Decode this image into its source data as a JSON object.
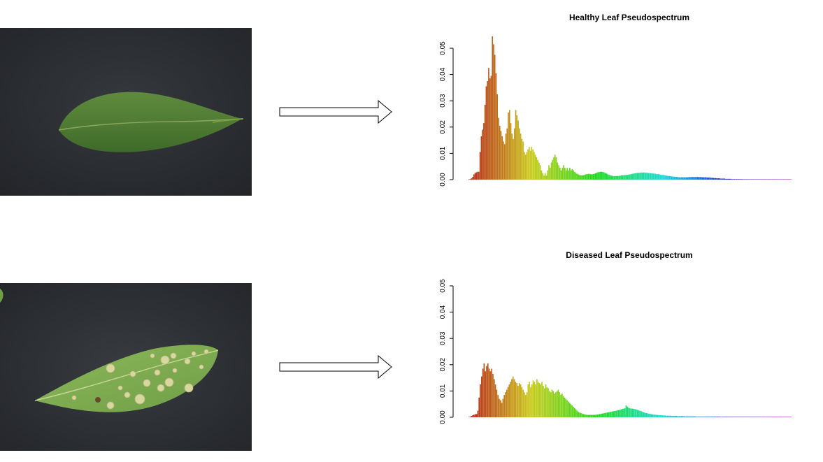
{
  "panels": [
    {
      "leaf_state": "healthy",
      "arrow_icon": "right-arrow-icon"
    },
    {
      "leaf_state": "diseased",
      "arrow_icon": "right-arrow-icon"
    }
  ],
  "chart_data": [
    {
      "type": "bar",
      "title": "Healthy Leaf Pseudospectrum",
      "xlabel": "",
      "ylabel": "",
      "ylim": [
        0,
        0.05
      ],
      "yticks": [
        "0.00",
        "0.01",
        "0.02",
        "0.03",
        "0.04",
        "0.05"
      ],
      "n_bins": 256,
      "color_scale": "rainbow red to magenta",
      "values": [
        0.0001,
        0.0002,
        0.0005,
        0.001,
        0.002,
        0.0025,
        0.0028,
        0.003,
        0.003,
        0.0105,
        0.0165,
        0.019,
        0.0215,
        0.0285,
        0.0355,
        0.0375,
        0.0425,
        0.0385,
        0.0395,
        0.0545,
        0.0515,
        0.0475,
        0.0405,
        0.0325,
        0.0235,
        0.0205,
        0.0185,
        0.0165,
        0.0145,
        0.0135,
        0.0175,
        0.0195,
        0.0255,
        0.0265,
        0.0215,
        0.0175,
        0.0155,
        0.0195,
        0.0265,
        0.0245,
        0.0225,
        0.0195,
        0.0175,
        0.0155,
        0.0145,
        0.0105,
        0.0095,
        0.0105,
        0.0115,
        0.0125,
        0.011,
        0.0125,
        0.0115,
        0.0105,
        0.0095,
        0.0085,
        0.0075,
        0.0065,
        0.0055,
        0.0035,
        0.0025,
        0.0015,
        0.0025,
        0.0015,
        0.0035,
        0.0055,
        0.0045,
        0.0065,
        0.0075,
        0.0085,
        0.0095,
        0.0085,
        0.0065,
        0.0055,
        0.0045,
        0.0035,
        0.0045,
        0.0055,
        0.0045,
        0.0035,
        0.0045,
        0.0035,
        0.0045,
        0.0035,
        0.004,
        0.0035,
        0.003,
        0.0025,
        0.0022,
        0.002,
        0.0018,
        0.0016,
        0.0016,
        0.0017,
        0.0018,
        0.002,
        0.0021,
        0.0022,
        0.0022,
        0.0021,
        0.002,
        0.0021,
        0.0022,
        0.0024,
        0.0026,
        0.0028,
        0.0029,
        0.003,
        0.003,
        0.0029,
        0.0027,
        0.0025,
        0.0023,
        0.002,
        0.0018,
        0.0016,
        0.0015,
        0.0014,
        0.0013,
        0.0013,
        0.0013,
        0.0014,
        0.0014,
        0.0015,
        0.0016,
        0.0016,
        0.0017,
        0.0017,
        0.0018,
        0.0018,
        0.0019,
        0.002,
        0.0021,
        0.0022,
        0.0023,
        0.0024,
        0.0025,
        0.0025,
        0.0026,
        0.0026,
        0.0027,
        0.0027,
        0.0027,
        0.0027,
        0.0026,
        0.0026,
        0.0025,
        0.0025,
        0.0024,
        0.0024,
        0.0023,
        0.0023,
        0.0022,
        0.0021,
        0.0021,
        0.002,
        0.0019,
        0.0018,
        0.0018,
        0.0017,
        0.0016,
        0.0015,
        0.0014,
        0.0014,
        0.0013,
        0.0012,
        0.0012,
        0.0011,
        0.0011,
        0.001,
        0.001,
        0.0009,
        0.0009,
        0.0009,
        0.0009,
        0.0009,
        0.0009,
        0.0009,
        0.0009,
        0.001,
        0.001,
        0.001,
        0.001,
        0.001,
        0.001,
        0.001,
        0.001,
        0.001,
        0.001,
        0.001,
        0.0009,
        0.0009,
        0.0009,
        0.0009,
        0.0008,
        0.0008,
        0.0008,
        0.0007,
        0.0007,
        0.0006,
        0.0006,
        0.0006,
        0.0005,
        0.0005,
        0.0005,
        0.0004,
        0.0004,
        0.0004,
        0.0004,
        0.0003,
        0.0003,
        0.0003,
        0.0003,
        0.0003,
        0.0002,
        0.0002,
        0.0002,
        0.0002,
        0.0002,
        0.0002,
        0.0002,
        0.0002,
        0.0002,
        0.0001,
        0.0001,
        0.0001,
        0.0001,
        0.0001,
        0.0001,
        0.0001,
        0.0001,
        0.0001,
        0.0001,
        0.0001,
        0.0001,
        0.0001,
        0.0001,
        0.0001,
        0.0001,
        0.0001,
        0.0001,
        0.0001,
        0.0001,
        0.0001,
        0.0001,
        0.0001,
        0.0001,
        0.0001,
        0.0001,
        0.0001,
        0.0001,
        0.0001,
        0.0001,
        0.0001,
        0.0001,
        0.0001,
        0.0001,
        0.0001,
        0.0001,
        0.0001,
        0.0001,
        0.0001,
        0.0001
      ]
    },
    {
      "type": "bar",
      "title": "Diseased Leaf Pseudospectrum",
      "xlabel": "",
      "ylabel": "",
      "ylim": [
        0,
        0.05
      ],
      "yticks": [
        "0.00",
        "0.01",
        "0.02",
        "0.03",
        "0.04",
        "0.05"
      ],
      "n_bins": 256,
      "color_scale": "rainbow red to magenta",
      "values": [
        0.0001,
        0.0002,
        0.0005,
        0.0008,
        0.001,
        0.0012,
        0.0012,
        0.0025,
        0.0075,
        0.0125,
        0.0155,
        0.0185,
        0.0205,
        0.0175,
        0.0195,
        0.0205,
        0.0185,
        0.0175,
        0.0185,
        0.0165,
        0.0145,
        0.0125,
        0.0105,
        0.0085,
        0.007,
        0.0065,
        0.0055,
        0.007,
        0.0085,
        0.0095,
        0.0105,
        0.0115,
        0.0125,
        0.0135,
        0.0145,
        0.0155,
        0.0145,
        0.0135,
        0.013,
        0.012,
        0.013,
        0.0125,
        0.0115,
        0.0105,
        0.0095,
        0.0085,
        0.0095,
        0.0125,
        0.0135,
        0.0115,
        0.0125,
        0.014,
        0.0135,
        0.0125,
        0.0145,
        0.0135,
        0.013,
        0.0125,
        0.0135,
        0.012,
        0.011,
        0.0125,
        0.0115,
        0.011,
        0.01,
        0.0095,
        0.0105,
        0.01,
        0.009,
        0.0095,
        0.01,
        0.0105,
        0.0095,
        0.0085,
        0.009,
        0.008,
        0.0075,
        0.007,
        0.0065,
        0.006,
        0.0055,
        0.005,
        0.0045,
        0.004,
        0.0035,
        0.003,
        0.0025,
        0.002,
        0.0018,
        0.0016,
        0.0014,
        0.0012,
        0.0011,
        0.001,
        0.0009,
        0.0009,
        0.0009,
        0.0009,
        0.0009,
        0.0009,
        0.0009,
        0.001,
        0.001,
        0.0011,
        0.0012,
        0.0013,
        0.0014,
        0.0015,
        0.0016,
        0.0017,
        0.0018,
        0.0019,
        0.002,
        0.0021,
        0.0022,
        0.0023,
        0.0024,
        0.0025,
        0.0026,
        0.0027,
        0.0028,
        0.003,
        0.0032,
        0.0033,
        0.0034,
        0.0045,
        0.004,
        0.0036,
        0.0034,
        0.0033,
        0.0033,
        0.0032,
        0.0031,
        0.003,
        0.0028,
        0.0026,
        0.0025,
        0.0023,
        0.0021,
        0.0019,
        0.0017,
        0.0016,
        0.0015,
        0.0014,
        0.0013,
        0.0012,
        0.0011,
        0.001,
        0.001,
        0.0009,
        0.0009,
        0.0008,
        0.0008,
        0.0008,
        0.0007,
        0.0007,
        0.0007,
        0.0006,
        0.0006,
        0.0006,
        0.0006,
        0.0005,
        0.0005,
        0.0005,
        0.0005,
        0.0005,
        0.0004,
        0.0004,
        0.0004,
        0.0004,
        0.0004,
        0.0004,
        0.0003,
        0.0003,
        0.0003,
        0.0003,
        0.0003,
        0.0003,
        0.0003,
        0.0003,
        0.0003,
        0.0002,
        0.0002,
        0.0002,
        0.0002,
        0.0002,
        0.0002,
        0.0002,
        0.0002,
        0.0002,
        0.0002,
        0.0002,
        0.0002,
        0.0002,
        0.0002,
        0.0002,
        0.0002,
        0.0002,
        0.0002,
        0.0002,
        0.0001,
        0.0001,
        0.0001,
        0.0001,
        0.0001,
        0.0001,
        0.0001,
        0.0001,
        0.0001,
        0.0001,
        0.0001,
        0.0001,
        0.0001,
        0.0001,
        0.0001,
        0.0001,
        0.0001,
        0.0001,
        0.0001,
        0.0001,
        0.0001,
        0.0001,
        0.0001,
        0.0001,
        0.0001,
        0.0001,
        0.0001,
        0.0001,
        0.0001,
        0.0001,
        0.0001,
        0.0001,
        0.0001,
        0.0001,
        0.0001,
        0.0001,
        0.0001,
        0.0001,
        0.0001,
        0.0001,
        0.0001,
        0.0001,
        0.0001,
        0.0001,
        0.0001,
        0.0001,
        0.0001,
        0.0001,
        0.0001,
        0.0001,
        0.0001,
        0.0001,
        0.0001,
        0.0001,
        0.0001,
        0.0001,
        0.0001
      ]
    }
  ]
}
